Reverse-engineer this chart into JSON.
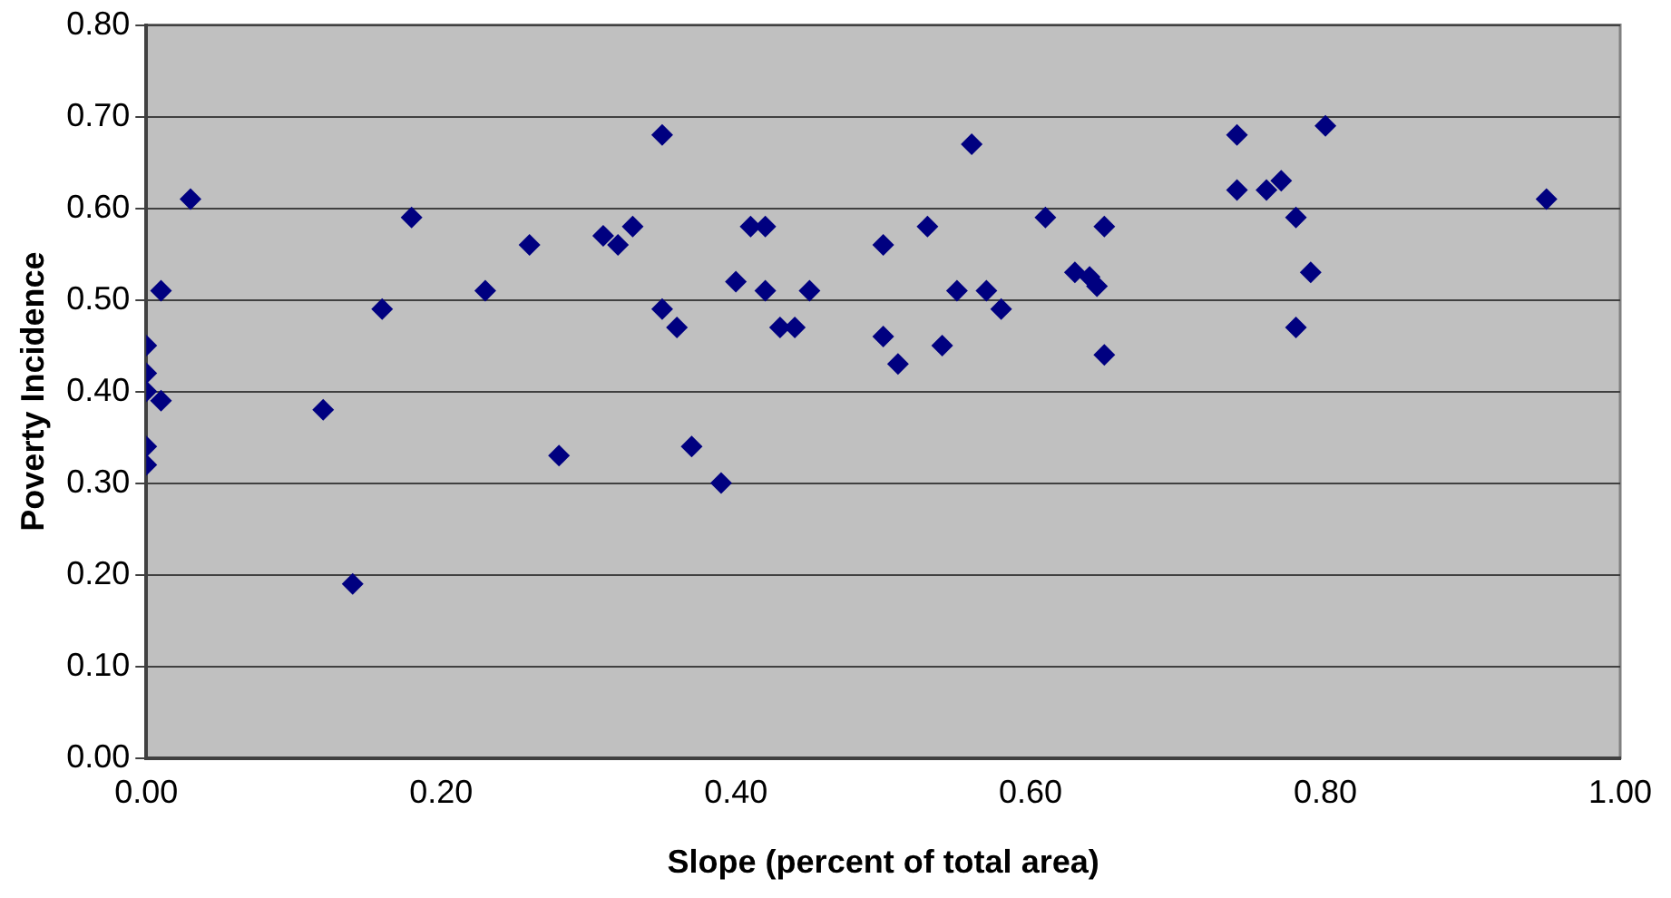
{
  "chart_data": {
    "type": "scatter",
    "xlabel": "Slope (percent of total area)",
    "ylabel": "Poverty Incidence",
    "x": [
      0.0,
      0.0,
      0.0,
      0.01,
      0.0,
      0.0,
      0.01,
      0.03,
      0.12,
      0.14,
      0.16,
      0.18,
      0.23,
      0.26,
      0.28,
      0.31,
      0.32,
      0.33,
      0.35,
      0.35,
      0.36,
      0.37,
      0.39,
      0.4,
      0.41,
      0.42,
      0.42,
      0.43,
      0.44,
      0.45,
      0.5,
      0.5,
      0.51,
      0.53,
      0.54,
      0.55,
      0.56,
      0.57,
      0.58,
      0.61,
      0.63,
      0.64,
      0.645,
      0.65,
      0.65,
      0.74,
      0.74,
      0.76,
      0.77,
      0.78,
      0.78,
      0.79,
      0.8,
      0.95
    ],
    "series": [
      {
        "color": "#000080",
        "values": [
          0.45,
          0.42,
          0.4,
          0.39,
          0.34,
          0.32,
          0.51,
          0.61,
          0.38,
          0.19,
          0.49,
          0.59,
          0.51,
          0.56,
          0.33,
          0.57,
          0.56,
          0.58,
          0.49,
          0.68,
          0.47,
          0.34,
          0.3,
          0.52,
          0.58,
          0.51,
          0.58,
          0.47,
          0.47,
          0.51,
          0.46,
          0.56,
          0.43,
          0.58,
          0.45,
          0.51,
          0.67,
          0.51,
          0.49,
          0.59,
          0.53,
          0.525,
          0.515,
          0.58,
          0.44,
          0.68,
          0.62,
          0.62,
          0.63,
          0.59,
          0.47,
          0.53,
          0.69,
          0.61
        ]
      }
    ],
    "xlim": [
      0,
      1
    ],
    "xticks": [
      {
        "value": 0,
        "label": "0.00"
      },
      {
        "value": 0.2,
        "label": "0.20"
      },
      {
        "value": 0.4,
        "label": "0.40"
      },
      {
        "value": 0.6,
        "label": "0.60"
      },
      {
        "value": 0.8,
        "label": "0.80"
      },
      {
        "value": 1,
        "label": "1.00"
      }
    ],
    "ylim": [
      0,
      0.8
    ],
    "yticks": [
      {
        "value": 0,
        "label": "0.00"
      },
      {
        "value": 0.1,
        "label": "0.10"
      },
      {
        "value": 0.2,
        "label": "0.20"
      },
      {
        "value": 0.3,
        "label": "0.30"
      },
      {
        "value": 0.4,
        "label": "0.40"
      },
      {
        "value": 0.5,
        "label": "0.50"
      },
      {
        "value": 0.6,
        "label": "0.60"
      },
      {
        "value": 0.7,
        "label": "0.70"
      },
      {
        "value": 0.8,
        "label": "0.80"
      }
    ],
    "grid": "y",
    "marker": "diamond",
    "legend": false
  }
}
